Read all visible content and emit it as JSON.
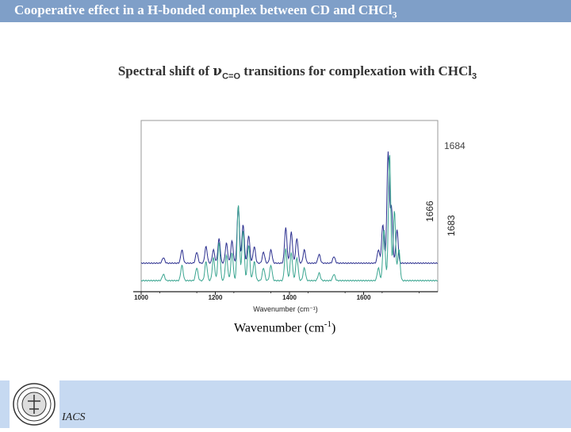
{
  "header": {
    "title_prefix": "Cooperative effect in a H-bonded complex between CD and CHCl",
    "title_sub": "3"
  },
  "subtitle": {
    "prefix": "Spectral shift of ",
    "nu": "ν",
    "nu_sub": "C=O",
    "suffix": " transitions for complexation with CHCl",
    "suffix_sub": "3"
  },
  "footer": {
    "institute": "IACS"
  },
  "xlabel_big": {
    "text": "Wavenumber (cm",
    "sup": "-1",
    "close": ")"
  },
  "colors": {
    "upper_series": "#2b2f8f",
    "lower_series": "#3aa590",
    "header": "#7f9fc8",
    "footer": "#c6d9f1"
  },
  "chart_data": {
    "type": "line",
    "xlabel": "Wavenumber (cm⁻¹)",
    "xlim": [
      1000,
      1800
    ],
    "x_ticks": [
      1000,
      1200,
      1400,
      1600
    ],
    "annotations": [
      {
        "text": "1684",
        "x": 1684,
        "orientation": "horizontal"
      },
      {
        "text": "1666",
        "x": 1666,
        "orientation": "vertical"
      },
      {
        "text": "1683",
        "x": 1683,
        "orientation": "vertical"
      }
    ],
    "series": [
      {
        "peaks": [
          [
            1060,
            0.05
          ],
          [
            1110,
            0.12
          ],
          [
            1150,
            0.1
          ],
          [
            1175,
            0.15
          ],
          [
            1195,
            0.12
          ],
          [
            1210,
            0.22
          ],
          [
            1230,
            0.18
          ],
          [
            1245,
            0.2
          ],
          [
            1262,
            0.52
          ],
          [
            1275,
            0.35
          ],
          [
            1290,
            0.25
          ],
          [
            1305,
            0.15
          ],
          [
            1330,
            0.1
          ],
          [
            1350,
            0.12
          ],
          [
            1390,
            0.32
          ],
          [
            1405,
            0.28
          ],
          [
            1420,
            0.22
          ],
          [
            1440,
            0.12
          ],
          [
            1480,
            0.08
          ],
          [
            1520,
            0.06
          ],
          [
            1640,
            0.12
          ],
          [
            1652,
            0.35
          ],
          [
            1666,
            1.0
          ],
          [
            1675,
            0.5
          ],
          [
            1690,
            0.3
          ]
        ]
      },
      {
        "peaks": [
          [
            1060,
            0.05
          ],
          [
            1110,
            0.12
          ],
          [
            1150,
            0.1
          ],
          [
            1175,
            0.15
          ],
          [
            1195,
            0.18
          ],
          [
            1210,
            0.3
          ],
          [
            1230,
            0.2
          ],
          [
            1245,
            0.22
          ],
          [
            1262,
            0.6
          ],
          [
            1275,
            0.4
          ],
          [
            1290,
            0.28
          ],
          [
            1305,
            0.15
          ],
          [
            1330,
            0.1
          ],
          [
            1350,
            0.12
          ],
          [
            1390,
            0.25
          ],
          [
            1405,
            0.22
          ],
          [
            1420,
            0.18
          ],
          [
            1440,
            0.1
          ],
          [
            1480,
            0.06
          ],
          [
            1520,
            0.05
          ],
          [
            1640,
            0.1
          ],
          [
            1655,
            0.4
          ],
          [
            1670,
            1.0
          ],
          [
            1683,
            0.55
          ],
          [
            1695,
            0.25
          ]
        ]
      }
    ]
  }
}
